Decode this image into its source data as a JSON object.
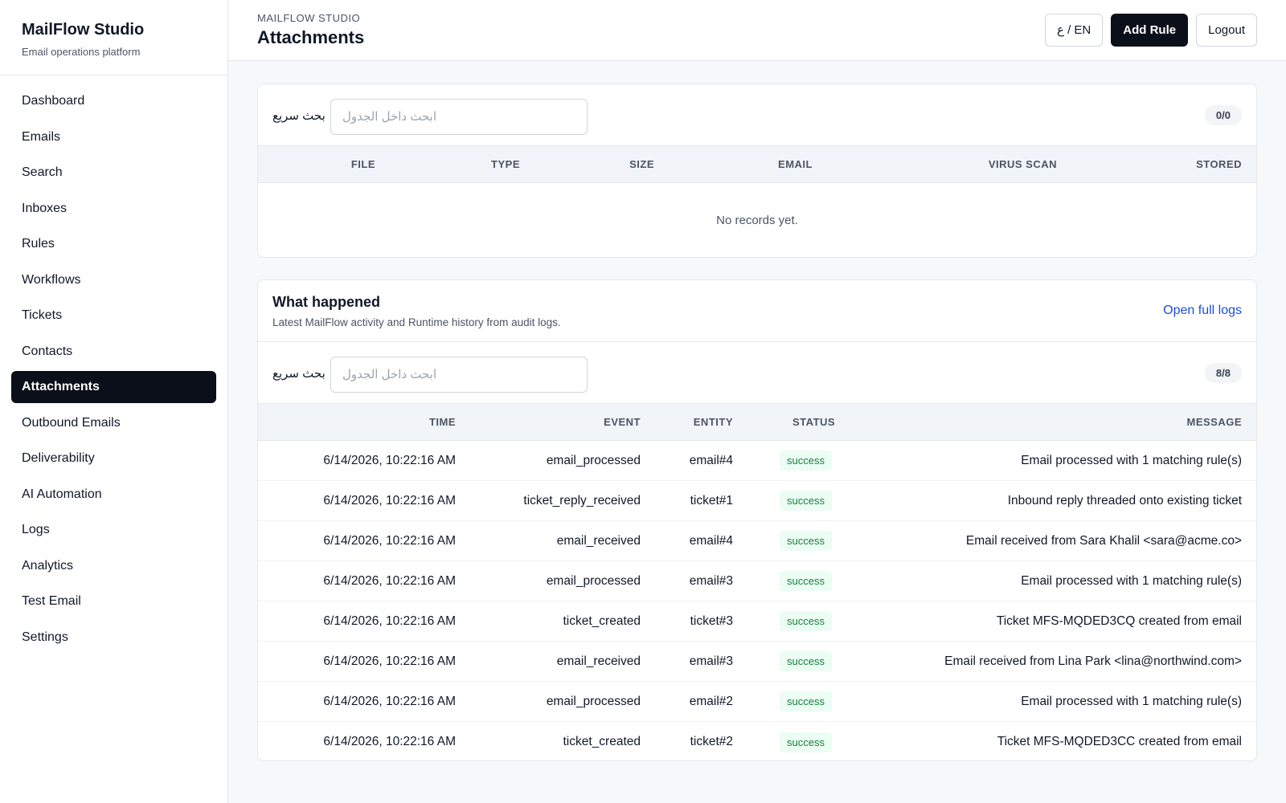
{
  "sidebar": {
    "brand": {
      "title": "MailFlow Studio",
      "subtitle": "Email operations platform"
    },
    "nav": [
      "Dashboard",
      "Emails",
      "Search",
      "Inboxes",
      "Rules",
      "Workflows",
      "Tickets",
      "Contacts",
      "Attachments",
      "Outbound Emails",
      "Deliverability",
      "AI Automation",
      "Logs",
      "Analytics",
      "Test Email",
      "Settings"
    ]
  },
  "header": {
    "eyebrow": "MAILFLOW STUDIO",
    "title": "Attachments",
    "buttons": {
      "language": "ع / EN",
      "add_rule": "Add Rule",
      "logout": "Logout"
    }
  },
  "attachments": {
    "search": {
      "label": "بحث سريع",
      "placeholder": "ابحث داخل الجدول"
    },
    "count": "0/0",
    "columns": [
      "FILE",
      "TYPE",
      "SIZE",
      "EMAIL",
      "VIRUS SCAN",
      "STORED"
    ],
    "empty": "No records yet."
  },
  "activity": {
    "title": "What happened",
    "subtitle": "Latest MailFlow activity and Runtime history from audit logs.",
    "link": "Open full logs",
    "search": {
      "label": "بحث سريع",
      "placeholder": "ابحث داخل الجدول"
    },
    "count": "8/8",
    "columns": [
      "TIME",
      "EVENT",
      "ENTITY",
      "STATUS",
      "MESSAGE"
    ],
    "rows": [
      [
        "6/14/2026, 10:22:16 AM",
        "email_processed",
        "email#4",
        "success",
        "Email processed with 1 matching rule(s)"
      ],
      [
        "6/14/2026, 10:22:16 AM",
        "ticket_reply_received",
        "ticket#1",
        "success",
        "Inbound reply threaded onto existing ticket"
      ],
      [
        "6/14/2026, 10:22:16 AM",
        "email_received",
        "email#4",
        "success",
        "Email received from Sara Khalil <sara@acme.co>"
      ],
      [
        "6/14/2026, 10:22:16 AM",
        "email_processed",
        "email#3",
        "success",
        "Email processed with 1 matching rule(s)"
      ],
      [
        "6/14/2026, 10:22:16 AM",
        "ticket_created",
        "ticket#3",
        "success",
        "Ticket MFS-MQDED3CQ created from email"
      ],
      [
        "6/14/2026, 10:22:16 AM",
        "email_received",
        "email#3",
        "success",
        "Email received from Lina Park <lina@northwind.com>"
      ],
      [
        "6/14/2026, 10:22:16 AM",
        "email_processed",
        "email#2",
        "success",
        "Email processed with 1 matching rule(s)"
      ],
      [
        "6/14/2026, 10:22:16 AM",
        "ticket_created",
        "ticket#2",
        "success",
        "Ticket MFS-MQDED3CC created from email"
      ]
    ]
  }
}
